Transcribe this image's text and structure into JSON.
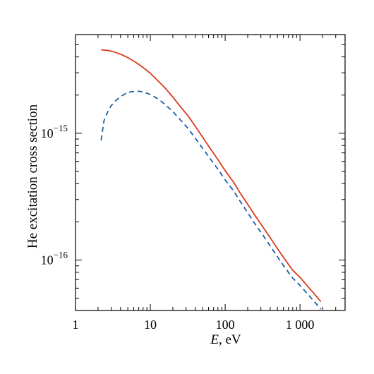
{
  "chart_data": {
    "type": "line",
    "xlabel_var": "E",
    "xlabel_unit": ", eV",
    "ylabel": "He excitation cross section",
    "x_scale": "log",
    "y_scale": "log",
    "xlim": [
      1,
      4000
    ],
    "ylim": [
      4e-17,
      6e-15
    ],
    "grid": false,
    "x_ticks": [
      {
        "value": 1,
        "label": "1"
      },
      {
        "value": 10,
        "label": "10"
      },
      {
        "value": 100,
        "label": "100"
      },
      {
        "value": 1000,
        "label": "1 000"
      }
    ],
    "y_ticks": [
      {
        "value": 1e-15,
        "base": "10",
        "exp": "−15"
      },
      {
        "value": 1e-16,
        "base": "10",
        "exp": "−16"
      }
    ],
    "series": [
      {
        "color": "#d93a1c",
        "style": "solid",
        "x": [
          2.2,
          2.7,
          3.2,
          4,
          5,
          6.5,
          8,
          10,
          13,
          16,
          20,
          25,
          32,
          40,
          50,
          63,
          80,
          100,
          130,
          160,
          200,
          250,
          320,
          400,
          500,
          630,
          800,
          1000,
          1300,
          1600,
          1900
        ],
        "y": [
          4.55e-15,
          4.5e-15,
          4.4e-15,
          4.2e-15,
          3.95e-15,
          3.6e-15,
          3.3e-15,
          2.97e-15,
          2.55e-15,
          2.25e-15,
          1.93e-15,
          1.63e-15,
          1.37e-15,
          1.13e-15,
          9.3e-16,
          7.6e-16,
          6.2e-16,
          5.07e-16,
          4.1e-16,
          3.35e-16,
          2.75e-16,
          2.25e-16,
          1.82e-16,
          1.5e-16,
          1.23e-16,
          1.01e-16,
          8.3e-17,
          7.3e-17,
          6.1e-17,
          5.3e-17,
          4.7e-17
        ]
      },
      {
        "color": "#1a5fa8",
        "style": "dashed",
        "x": [
          2.2,
          2.4,
          2.7,
          3,
          3.5,
          4,
          5,
          6.5,
          8,
          10,
          13,
          16,
          20,
          25,
          32,
          40,
          50,
          63,
          80,
          100,
          130,
          160,
          200,
          250,
          320,
          400,
          500,
          630,
          800,
          1000,
          1300,
          1600,
          1900
        ],
        "y": [
          8.8e-16,
          1.25e-15,
          1.48e-15,
          1.65e-15,
          1.82e-15,
          1.95e-15,
          2.1e-15,
          2.15e-15,
          2.12e-15,
          2.02e-15,
          1.85e-15,
          1.67e-15,
          1.48e-15,
          1.28e-15,
          1.09e-15,
          9.1e-16,
          7.6e-16,
          6.3e-16,
          5.2e-16,
          4.28e-16,
          3.5e-16,
          2.88e-16,
          2.36e-16,
          1.93e-16,
          1.57e-16,
          1.29e-16,
          1.06e-16,
          8.7e-17,
          7.2e-17,
          6.3e-17,
          5.3e-17,
          4.6e-17,
          4.1e-17
        ]
      }
    ]
  }
}
